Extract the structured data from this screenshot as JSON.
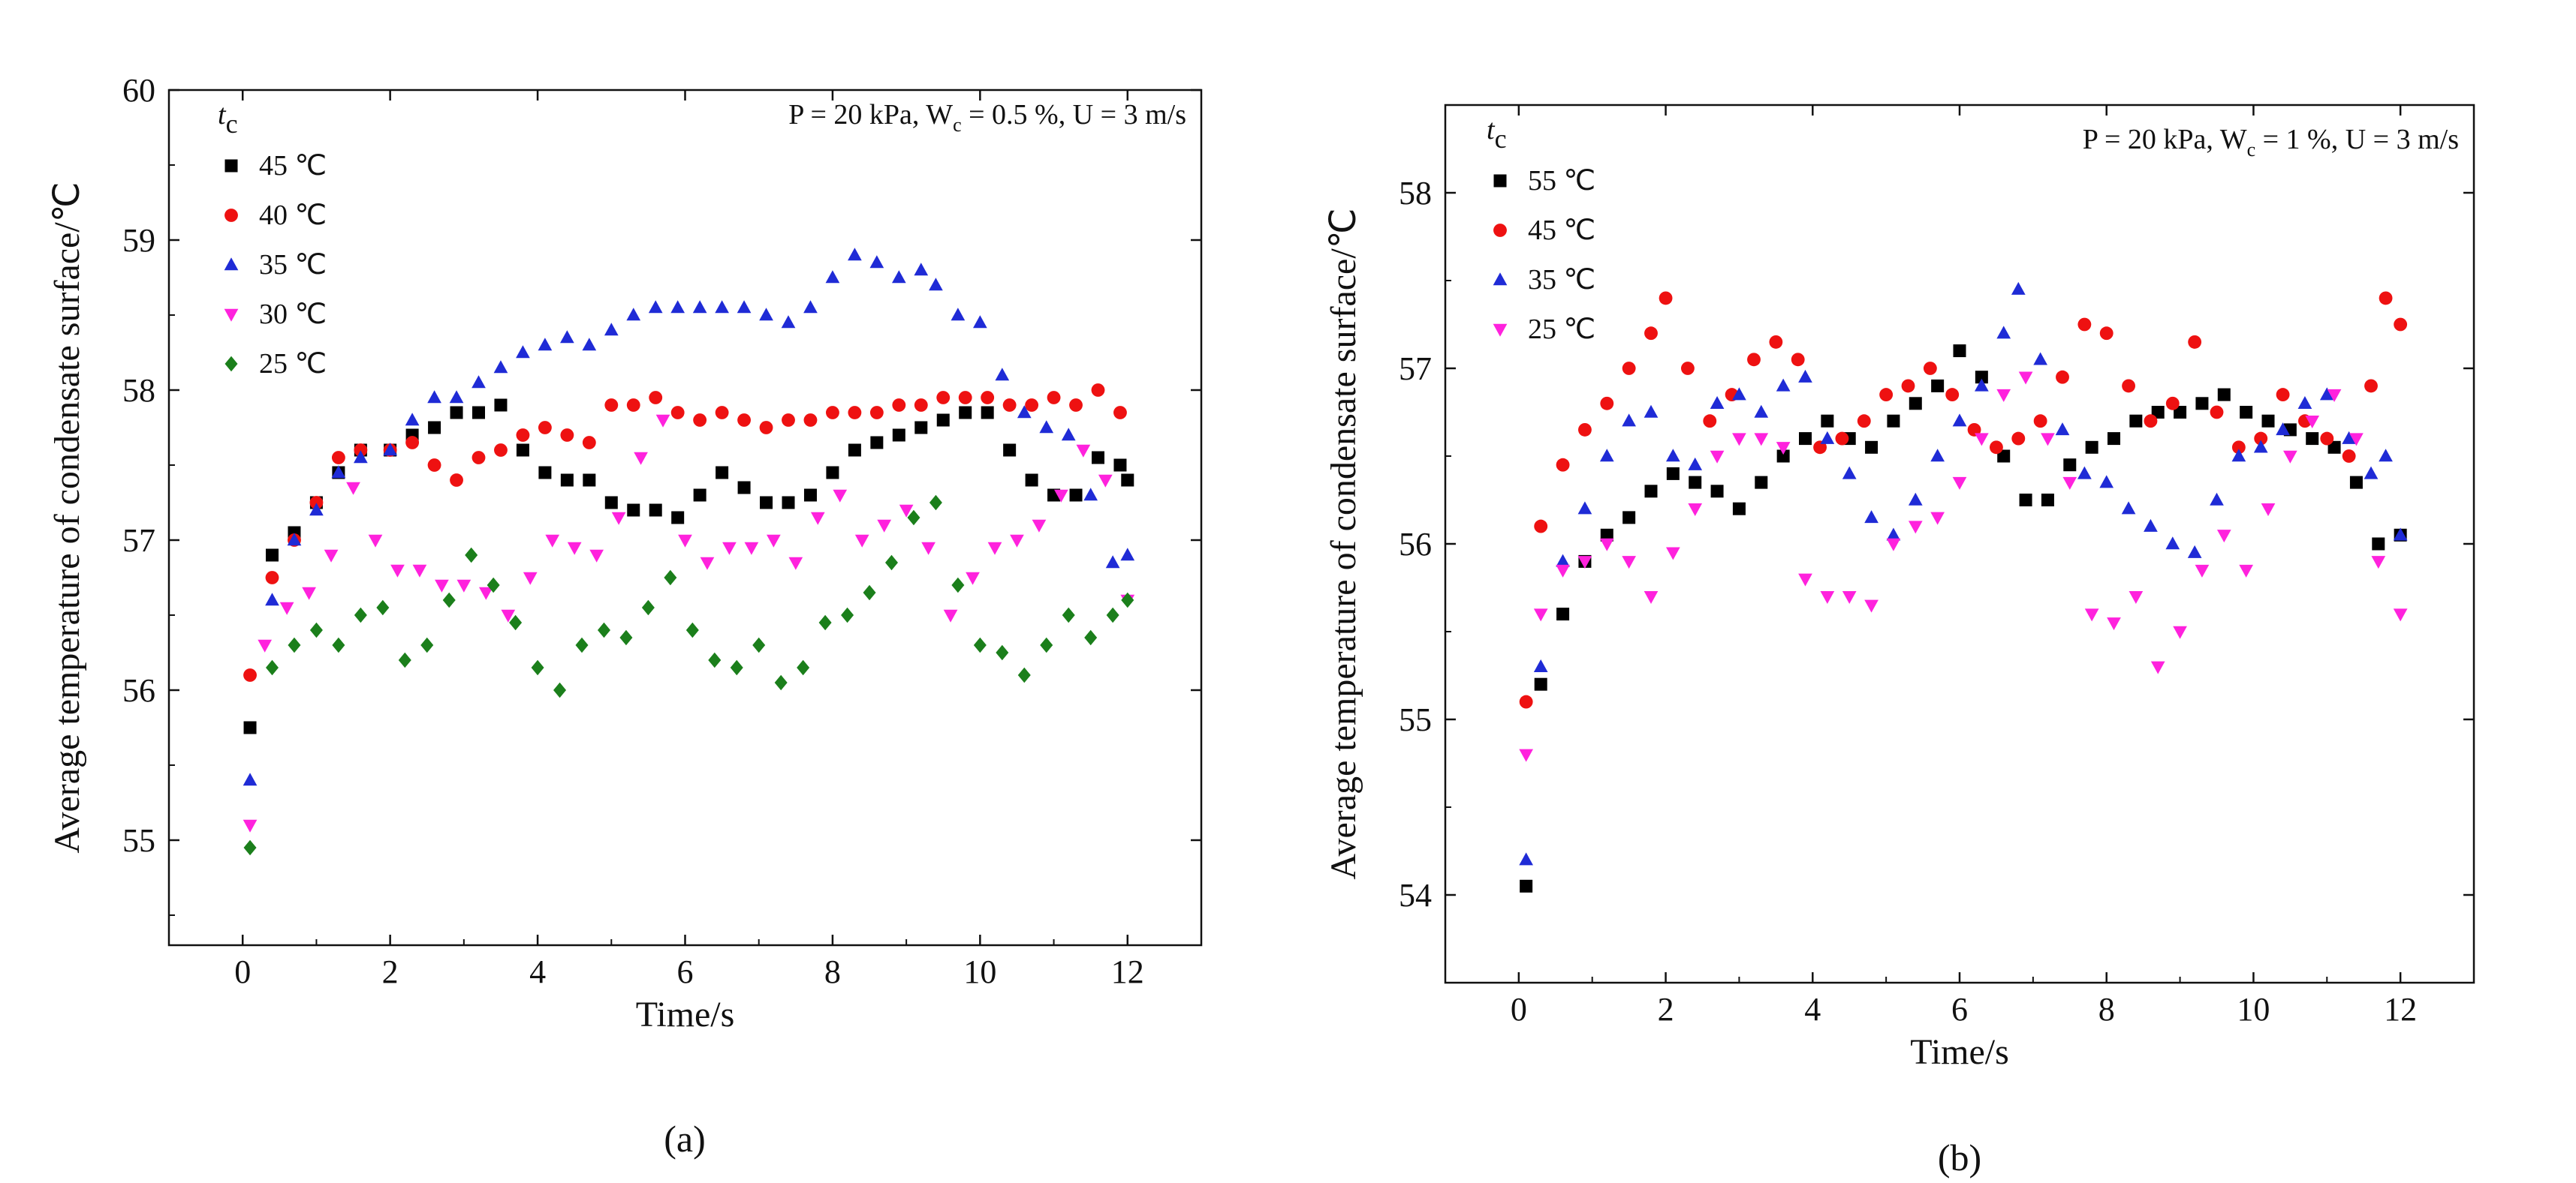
{
  "chart_data": [
    {
      "type": "scatter",
      "panel_label": "(a)",
      "legend_title": "t",
      "legend_title_sub": "c",
      "annotation": "P = 20 kPa, W",
      "annotation_sub": "c",
      "annotation_rest": " = 0.5 %, U = 3 m/s",
      "xlabel": "Time/s",
      "ylabel": "Average temperature of condensate surface/℃",
      "xlim": [
        -1,
        13
      ],
      "ylim": [
        54.3,
        60
      ],
      "xticks": [
        0,
        2,
        4,
        6,
        8,
        10,
        12
      ],
      "yticks": [
        55,
        56,
        57,
        58,
        59,
        60
      ],
      "series": [
        {
          "name": "45 ℃",
          "color": "#000000",
          "marker": "square",
          "x": [
            0.1,
            0.4,
            0.7,
            1.0,
            1.3,
            1.6,
            2.0,
            2.3,
            2.6,
            2.9,
            3.2,
            3.5,
            3.8,
            4.1,
            4.4,
            4.7,
            5.0,
            5.3,
            5.6,
            5.9,
            6.2,
            6.5,
            6.8,
            7.1,
            7.4,
            7.7,
            8.0,
            8.3,
            8.6,
            8.9,
            9.2,
            9.5,
            9.8,
            10.1,
            10.4,
            10.7,
            11.0,
            11.3,
            11.6,
            11.9,
            12.0
          ],
          "y": [
            55.75,
            56.9,
            57.05,
            57.25,
            57.45,
            57.6,
            57.6,
            57.7,
            57.75,
            57.85,
            57.85,
            57.9,
            57.6,
            57.45,
            57.4,
            57.4,
            57.25,
            57.2,
            57.2,
            57.15,
            57.3,
            57.45,
            57.35,
            57.25,
            57.25,
            57.3,
            57.45,
            57.6,
            57.65,
            57.7,
            57.75,
            57.8,
            57.85,
            57.85,
            57.6,
            57.4,
            57.3,
            57.3,
            57.55,
            57.5,
            57.4
          ]
        },
        {
          "name": "40 ℃",
          "color": "#ee1111",
          "marker": "circle",
          "x": [
            0.1,
            0.4,
            0.7,
            1.0,
            1.3,
            1.6,
            2.0,
            2.3,
            2.6,
            2.9,
            3.2,
            3.5,
            3.8,
            4.1,
            4.4,
            4.7,
            5.0,
            5.3,
            5.6,
            5.9,
            6.2,
            6.5,
            6.8,
            7.1,
            7.4,
            7.7,
            8.0,
            8.3,
            8.6,
            8.9,
            9.2,
            9.5,
            9.8,
            10.1,
            10.4,
            10.7,
            11.0,
            11.3,
            11.6,
            11.9
          ],
          "y": [
            56.1,
            56.75,
            57.0,
            57.25,
            57.55,
            57.6,
            57.6,
            57.65,
            57.5,
            57.4,
            57.55,
            57.6,
            57.7,
            57.75,
            57.7,
            57.65,
            57.9,
            57.9,
            57.95,
            57.85,
            57.8,
            57.85,
            57.8,
            57.75,
            57.8,
            57.8,
            57.85,
            57.85,
            57.85,
            57.9,
            57.9,
            57.95,
            57.95,
            57.95,
            57.9,
            57.9,
            57.95,
            57.9,
            58.0,
            57.85
          ]
        },
        {
          "name": "35 ℃",
          "color": "#1f2bd6",
          "marker": "triangle-up",
          "x": [
            0.1,
            0.4,
            0.7,
            1.0,
            1.3,
            1.6,
            2.0,
            2.3,
            2.6,
            2.9,
            3.2,
            3.5,
            3.8,
            4.1,
            4.4,
            4.7,
            5.0,
            5.3,
            5.6,
            5.9,
            6.2,
            6.5,
            6.8,
            7.1,
            7.4,
            7.7,
            8.0,
            8.3,
            8.6,
            8.9,
            9.2,
            9.4,
            9.7,
            10.0,
            10.3,
            10.6,
            10.9,
            11.2,
            11.5,
            11.8,
            12.0
          ],
          "y": [
            55.4,
            56.6,
            57.0,
            57.2,
            57.45,
            57.55,
            57.6,
            57.8,
            57.95,
            57.95,
            58.05,
            58.15,
            58.25,
            58.3,
            58.35,
            58.3,
            58.4,
            58.5,
            58.55,
            58.55,
            58.55,
            58.55,
            58.55,
            58.5,
            58.45,
            58.55,
            58.75,
            58.9,
            58.85,
            58.75,
            58.8,
            58.7,
            58.5,
            58.45,
            58.1,
            57.85,
            57.75,
            57.7,
            57.3,
            56.85,
            56.9
          ]
        },
        {
          "name": "30 ℃",
          "color": "#ff22dd",
          "marker": "triangle-down",
          "x": [
            0.1,
            0.3,
            0.6,
            0.9,
            1.2,
            1.5,
            1.8,
            2.1,
            2.4,
            2.7,
            3.0,
            3.3,
            3.6,
            3.9,
            4.2,
            4.5,
            4.8,
            5.1,
            5.4,
            5.7,
            6.0,
            6.3,
            6.6,
            6.9,
            7.2,
            7.5,
            7.8,
            8.1,
            8.4,
            8.7,
            9.0,
            9.3,
            9.6,
            9.9,
            10.2,
            10.5,
            10.8,
            11.1,
            11.4,
            11.7,
            12.0
          ],
          "y": [
            55.1,
            56.3,
            56.55,
            56.65,
            56.9,
            57.35,
            57.0,
            56.8,
            56.8,
            56.7,
            56.7,
            56.65,
            56.5,
            56.75,
            57.0,
            56.95,
            56.9,
            57.15,
            57.55,
            57.8,
            57.0,
            56.85,
            56.95,
            56.95,
            57.0,
            56.85,
            57.15,
            57.3,
            57.0,
            57.1,
            57.2,
            56.95,
            56.5,
            56.75,
            56.95,
            57.0,
            57.1,
            57.3,
            57.6,
            57.4,
            56.6
          ]
        },
        {
          "name": "25 ℃",
          "color": "#1b7f1b",
          "marker": "diamond",
          "x": [
            0.1,
            0.4,
            0.7,
            1.0,
            1.3,
            1.6,
            1.9,
            2.2,
            2.5,
            2.8,
            3.1,
            3.4,
            3.7,
            4.0,
            4.3,
            4.6,
            4.9,
            5.2,
            5.5,
            5.8,
            6.1,
            6.4,
            6.7,
            7.0,
            7.3,
            7.6,
            7.9,
            8.2,
            8.5,
            8.8,
            9.1,
            9.4,
            9.7,
            10.0,
            10.3,
            10.6,
            10.9,
            11.2,
            11.5,
            11.8,
            12.0
          ],
          "y": [
            54.95,
            56.15,
            56.3,
            56.4,
            56.3,
            56.5,
            56.55,
            56.2,
            56.3,
            56.6,
            56.9,
            56.7,
            56.45,
            56.15,
            56.0,
            56.3,
            56.4,
            56.35,
            56.55,
            56.75,
            56.4,
            56.2,
            56.15,
            56.3,
            56.05,
            56.15,
            56.45,
            56.5,
            56.65,
            56.85,
            57.15,
            57.25,
            56.7,
            56.3,
            56.25,
            56.1,
            56.3,
            56.5,
            56.35,
            56.5,
            56.6
          ]
        }
      ]
    },
    {
      "type": "scatter",
      "panel_label": "(b)",
      "legend_title": "t",
      "legend_title_sub": "c",
      "annotation": "P = 20 kPa, W",
      "annotation_sub": "c",
      "annotation_rest": " = 1 %, U = 3 m/s",
      "xlabel": "Time/s",
      "ylabel": "Average temperature of condensate surface/℃",
      "xlim": [
        -1,
        13
      ],
      "ylim": [
        53.5,
        58.5
      ],
      "xticks": [
        0,
        2,
        4,
        6,
        8,
        10,
        12
      ],
      "yticks": [
        54,
        55,
        56,
        57,
        58
      ],
      "series": [
        {
          "name": "55 ℃",
          "color": "#000000",
          "marker": "square",
          "x": [
            0.1,
            0.3,
            0.6,
            0.9,
            1.2,
            1.5,
            1.8,
            2.1,
            2.4,
            2.7,
            3.0,
            3.3,
            3.6,
            3.9,
            4.2,
            4.5,
            4.8,
            5.1,
            5.4,
            5.7,
            6.0,
            6.3,
            6.6,
            6.9,
            7.2,
            7.5,
            7.8,
            8.1,
            8.4,
            8.7,
            9.0,
            9.3,
            9.6,
            9.9,
            10.2,
            10.5,
            10.8,
            11.1,
            11.4,
            11.7,
            12.0
          ],
          "y": [
            54.05,
            55.2,
            55.6,
            55.9,
            56.05,
            56.15,
            56.3,
            56.4,
            56.35,
            56.3,
            56.2,
            56.35,
            56.5,
            56.6,
            56.7,
            56.6,
            56.55,
            56.7,
            56.8,
            56.9,
            57.1,
            56.95,
            56.5,
            56.25,
            56.25,
            56.45,
            56.55,
            56.6,
            56.7,
            56.75,
            56.75,
            56.8,
            56.85,
            56.75,
            56.7,
            56.65,
            56.6,
            56.55,
            56.35,
            56.0,
            56.05
          ]
        },
        {
          "name": "45 ℃",
          "color": "#ee1111",
          "marker": "circle",
          "x": [
            0.1,
            0.3,
            0.6,
            0.9,
            1.2,
            1.5,
            1.8,
            2.0,
            2.3,
            2.6,
            2.9,
            3.2,
            3.5,
            3.8,
            4.1,
            4.4,
            4.7,
            5.0,
            5.3,
            5.6,
            5.9,
            6.2,
            6.5,
            6.8,
            7.1,
            7.4,
            7.7,
            8.0,
            8.3,
            8.6,
            8.9,
            9.2,
            9.5,
            9.8,
            10.1,
            10.4,
            10.7,
            11.0,
            11.3,
            11.6,
            11.8,
            12.0
          ],
          "y": [
            55.1,
            56.1,
            56.45,
            56.65,
            56.8,
            57.0,
            57.2,
            57.4,
            57.0,
            56.7,
            56.85,
            57.05,
            57.15,
            57.05,
            56.55,
            56.6,
            56.7,
            56.85,
            56.9,
            57.0,
            56.85,
            56.65,
            56.55,
            56.6,
            56.7,
            56.95,
            57.25,
            57.2,
            56.9,
            56.7,
            56.8,
            57.15,
            56.75,
            56.55,
            56.6,
            56.85,
            56.7,
            56.6,
            56.5,
            56.9,
            57.4,
            57.25
          ]
        },
        {
          "name": "35 ℃",
          "color": "#1f2bd6",
          "marker": "triangle-up",
          "x": [
            0.1,
            0.3,
            0.6,
            0.9,
            1.2,
            1.5,
            1.8,
            2.1,
            2.4,
            2.7,
            3.0,
            3.3,
            3.6,
            3.9,
            4.2,
            4.5,
            4.8,
            5.1,
            5.4,
            5.7,
            6.0,
            6.3,
            6.6,
            6.8,
            7.1,
            7.4,
            7.7,
            8.0,
            8.3,
            8.6,
            8.9,
            9.2,
            9.5,
            9.8,
            10.1,
            10.4,
            10.7,
            11.0,
            11.3,
            11.6,
            11.8,
            12.0
          ],
          "y": [
            54.2,
            55.3,
            55.9,
            56.2,
            56.5,
            56.7,
            56.75,
            56.5,
            56.45,
            56.8,
            56.85,
            56.75,
            56.9,
            56.95,
            56.6,
            56.4,
            56.15,
            56.05,
            56.25,
            56.5,
            56.7,
            56.9,
            57.2,
            57.45,
            57.05,
            56.65,
            56.4,
            56.35,
            56.2,
            56.1,
            56.0,
            55.95,
            56.25,
            56.5,
            56.55,
            56.65,
            56.8,
            56.85,
            56.6,
            56.4,
            56.5,
            56.05
          ]
        },
        {
          "name": "25 ℃",
          "color": "#ff22dd",
          "marker": "triangle-down",
          "x": [
            0.1,
            0.3,
            0.6,
            0.9,
            1.2,
            1.5,
            1.8,
            2.1,
            2.4,
            2.7,
            3.0,
            3.3,
            3.6,
            3.9,
            4.2,
            4.5,
            4.8,
            5.1,
            5.4,
            5.7,
            6.0,
            6.3,
            6.6,
            6.9,
            7.2,
            7.5,
            7.8,
            8.1,
            8.4,
            8.7,
            9.0,
            9.3,
            9.6,
            9.9,
            10.2,
            10.5,
            10.8,
            11.1,
            11.4,
            11.7,
            12.0
          ],
          "y": [
            54.8,
            55.6,
            55.85,
            55.9,
            56.0,
            55.9,
            55.7,
            55.95,
            56.2,
            56.5,
            56.6,
            56.6,
            56.55,
            55.8,
            55.7,
            55.7,
            55.65,
            56.0,
            56.1,
            56.15,
            56.35,
            56.6,
            56.85,
            56.95,
            56.6,
            56.35,
            55.6,
            55.55,
            55.7,
            55.3,
            55.5,
            55.85,
            56.05,
            55.85,
            56.2,
            56.5,
            56.7,
            56.85,
            56.6,
            55.9,
            55.6
          ]
        }
      ]
    }
  ]
}
